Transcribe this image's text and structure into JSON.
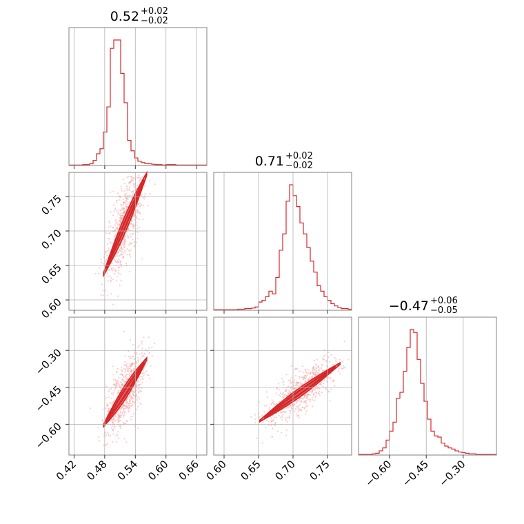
{
  "chart_data": {
    "type": "corner",
    "color": "#d62728",
    "parameters": [
      {
        "title": {
          "median": "0.52",
          "plus": "+0.02",
          "minus": "−0.02"
        },
        "range": [
          0.41,
          0.68
        ],
        "ticks": [
          0.42,
          0.48,
          0.54,
          0.6,
          0.66
        ],
        "tick_labels": [
          "0.42",
          "0.48",
          "0.54",
          "0.60",
          "0.66"
        ]
      },
      {
        "title": {
          "median": "0.71",
          "plus": "+0.02",
          "minus": "−0.02"
        },
        "range": [
          0.585,
          0.785
        ],
        "ticks": [
          0.6,
          0.65,
          0.7,
          0.75
        ],
        "tick_labels": [
          "0.60",
          "0.65",
          "0.70",
          "0.75"
        ]
      },
      {
        "title": {
          "median": "−0.47",
          "plus": "+0.06",
          "minus": "−0.05"
        },
        "range": [
          -0.725,
          -0.165
        ],
        "ticks": [
          -0.6,
          -0.45,
          -0.3
        ],
        "tick_labels": [
          "−0.60",
          "−0.45",
          "−0.30"
        ]
      }
    ],
    "histograms": [
      {
        "param": 0,
        "bin_edges": [
          0.41,
          0.68
        ],
        "counts": [
          1,
          1,
          1,
          1,
          2,
          2,
          4,
          12,
          28,
          40,
          80,
          140,
          280,
          300,
          300,
          220,
          150,
          60,
          35,
          18,
          10,
          7,
          5,
          4,
          3,
          2,
          2,
          1,
          2,
          2,
          2,
          1,
          1,
          1,
          1,
          1,
          1,
          1,
          1,
          1
        ]
      },
      {
        "param": 1,
        "bin_edges": [
          0.585,
          0.785
        ],
        "counts": [
          1,
          1,
          1,
          1,
          1,
          1,
          1,
          2,
          2,
          3,
          3,
          4,
          6,
          15,
          18,
          25,
          35,
          30,
          60,
          110,
          140,
          200,
          230,
          210,
          190,
          160,
          140,
          115,
          90,
          70,
          45,
          35,
          25,
          18,
          12,
          8,
          5,
          3,
          3,
          2
        ]
      },
      {
        "param": 2,
        "bin_edges": [
          -0.725,
          -0.165
        ],
        "counts": [
          1,
          1,
          1,
          1,
          2,
          3,
          7,
          12,
          25,
          40,
          55,
          95,
          105,
          140,
          180,
          210,
          205,
          160,
          120,
          90,
          60,
          40,
          32,
          30,
          20,
          15,
          12,
          10,
          7,
          5,
          4,
          3,
          2,
          2,
          1,
          1,
          1,
          1,
          1,
          1
        ]
      }
    ],
    "pairs": [
      {
        "x_param": 0,
        "y_param": 1,
        "slope": 1.72,
        "ref": [
          0.52,
          0.71
        ],
        "x_extent": [
          0.478,
          0.562
        ],
        "widths": [
          0.012,
          0.006,
          0.003
        ]
      },
      {
        "x_param": 0,
        "y_param": 2,
        "slope": 3.2,
        "ref": [
          0.52,
          -0.47
        ],
        "x_extent": [
          0.478,
          0.562
        ],
        "widths": [
          0.028,
          0.016,
          0.008
        ]
      },
      {
        "x_param": 1,
        "y_param": 2,
        "slope": 2.0,
        "ref": [
          0.71,
          -0.47
        ],
        "x_extent": [
          0.652,
          0.768
        ],
        "widths": [
          0.018,
          0.01,
          0.005
        ]
      }
    ]
  }
}
